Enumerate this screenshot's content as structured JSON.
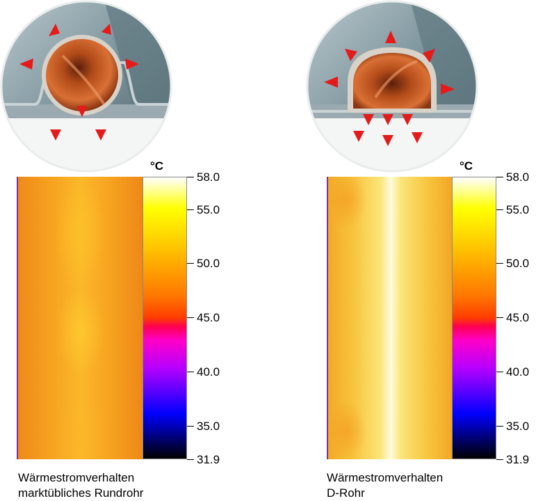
{
  "left": {
    "diagram_name": "round-pipe",
    "unit": "°C",
    "scale": {
      "min": 31.9,
      "max": 58.0,
      "ticks": [
        {
          "value": 58.0,
          "label": "58.0"
        },
        {
          "value": 55.0,
          "label": "55.0"
        },
        {
          "value": 50.0,
          "label": "50.0"
        },
        {
          "value": 45.0,
          "label": "45.0"
        },
        {
          "value": 40.0,
          "label": "40.0"
        },
        {
          "value": 35.0,
          "label": "35.0"
        },
        {
          "value": 31.9,
          "label": "31.9"
        }
      ]
    },
    "caption_line1": "Wärmestromverhalten",
    "caption_line2": "marktübliches Rundrohr"
  },
  "right": {
    "diagram_name": "d-pipe",
    "unit": "°C",
    "scale": {
      "min": 31.9,
      "max": 58.0,
      "ticks": [
        {
          "value": 58.0,
          "label": "58.0"
        },
        {
          "value": 55.0,
          "label": "55.0"
        },
        {
          "value": 50.0,
          "label": "50.0"
        },
        {
          "value": 45.0,
          "label": "45.0"
        },
        {
          "value": 40.0,
          "label": "40.0"
        },
        {
          "value": 35.0,
          "label": "35.0"
        },
        {
          "value": 31.9,
          "label": "31.9"
        }
      ]
    },
    "caption_line1": "Wärmestromverhalten",
    "caption_line2": "D-Rohr"
  },
  "colors": {
    "arrow": "#e41b1b",
    "copper": "#c2561e",
    "absorber": "#7f949c"
  }
}
